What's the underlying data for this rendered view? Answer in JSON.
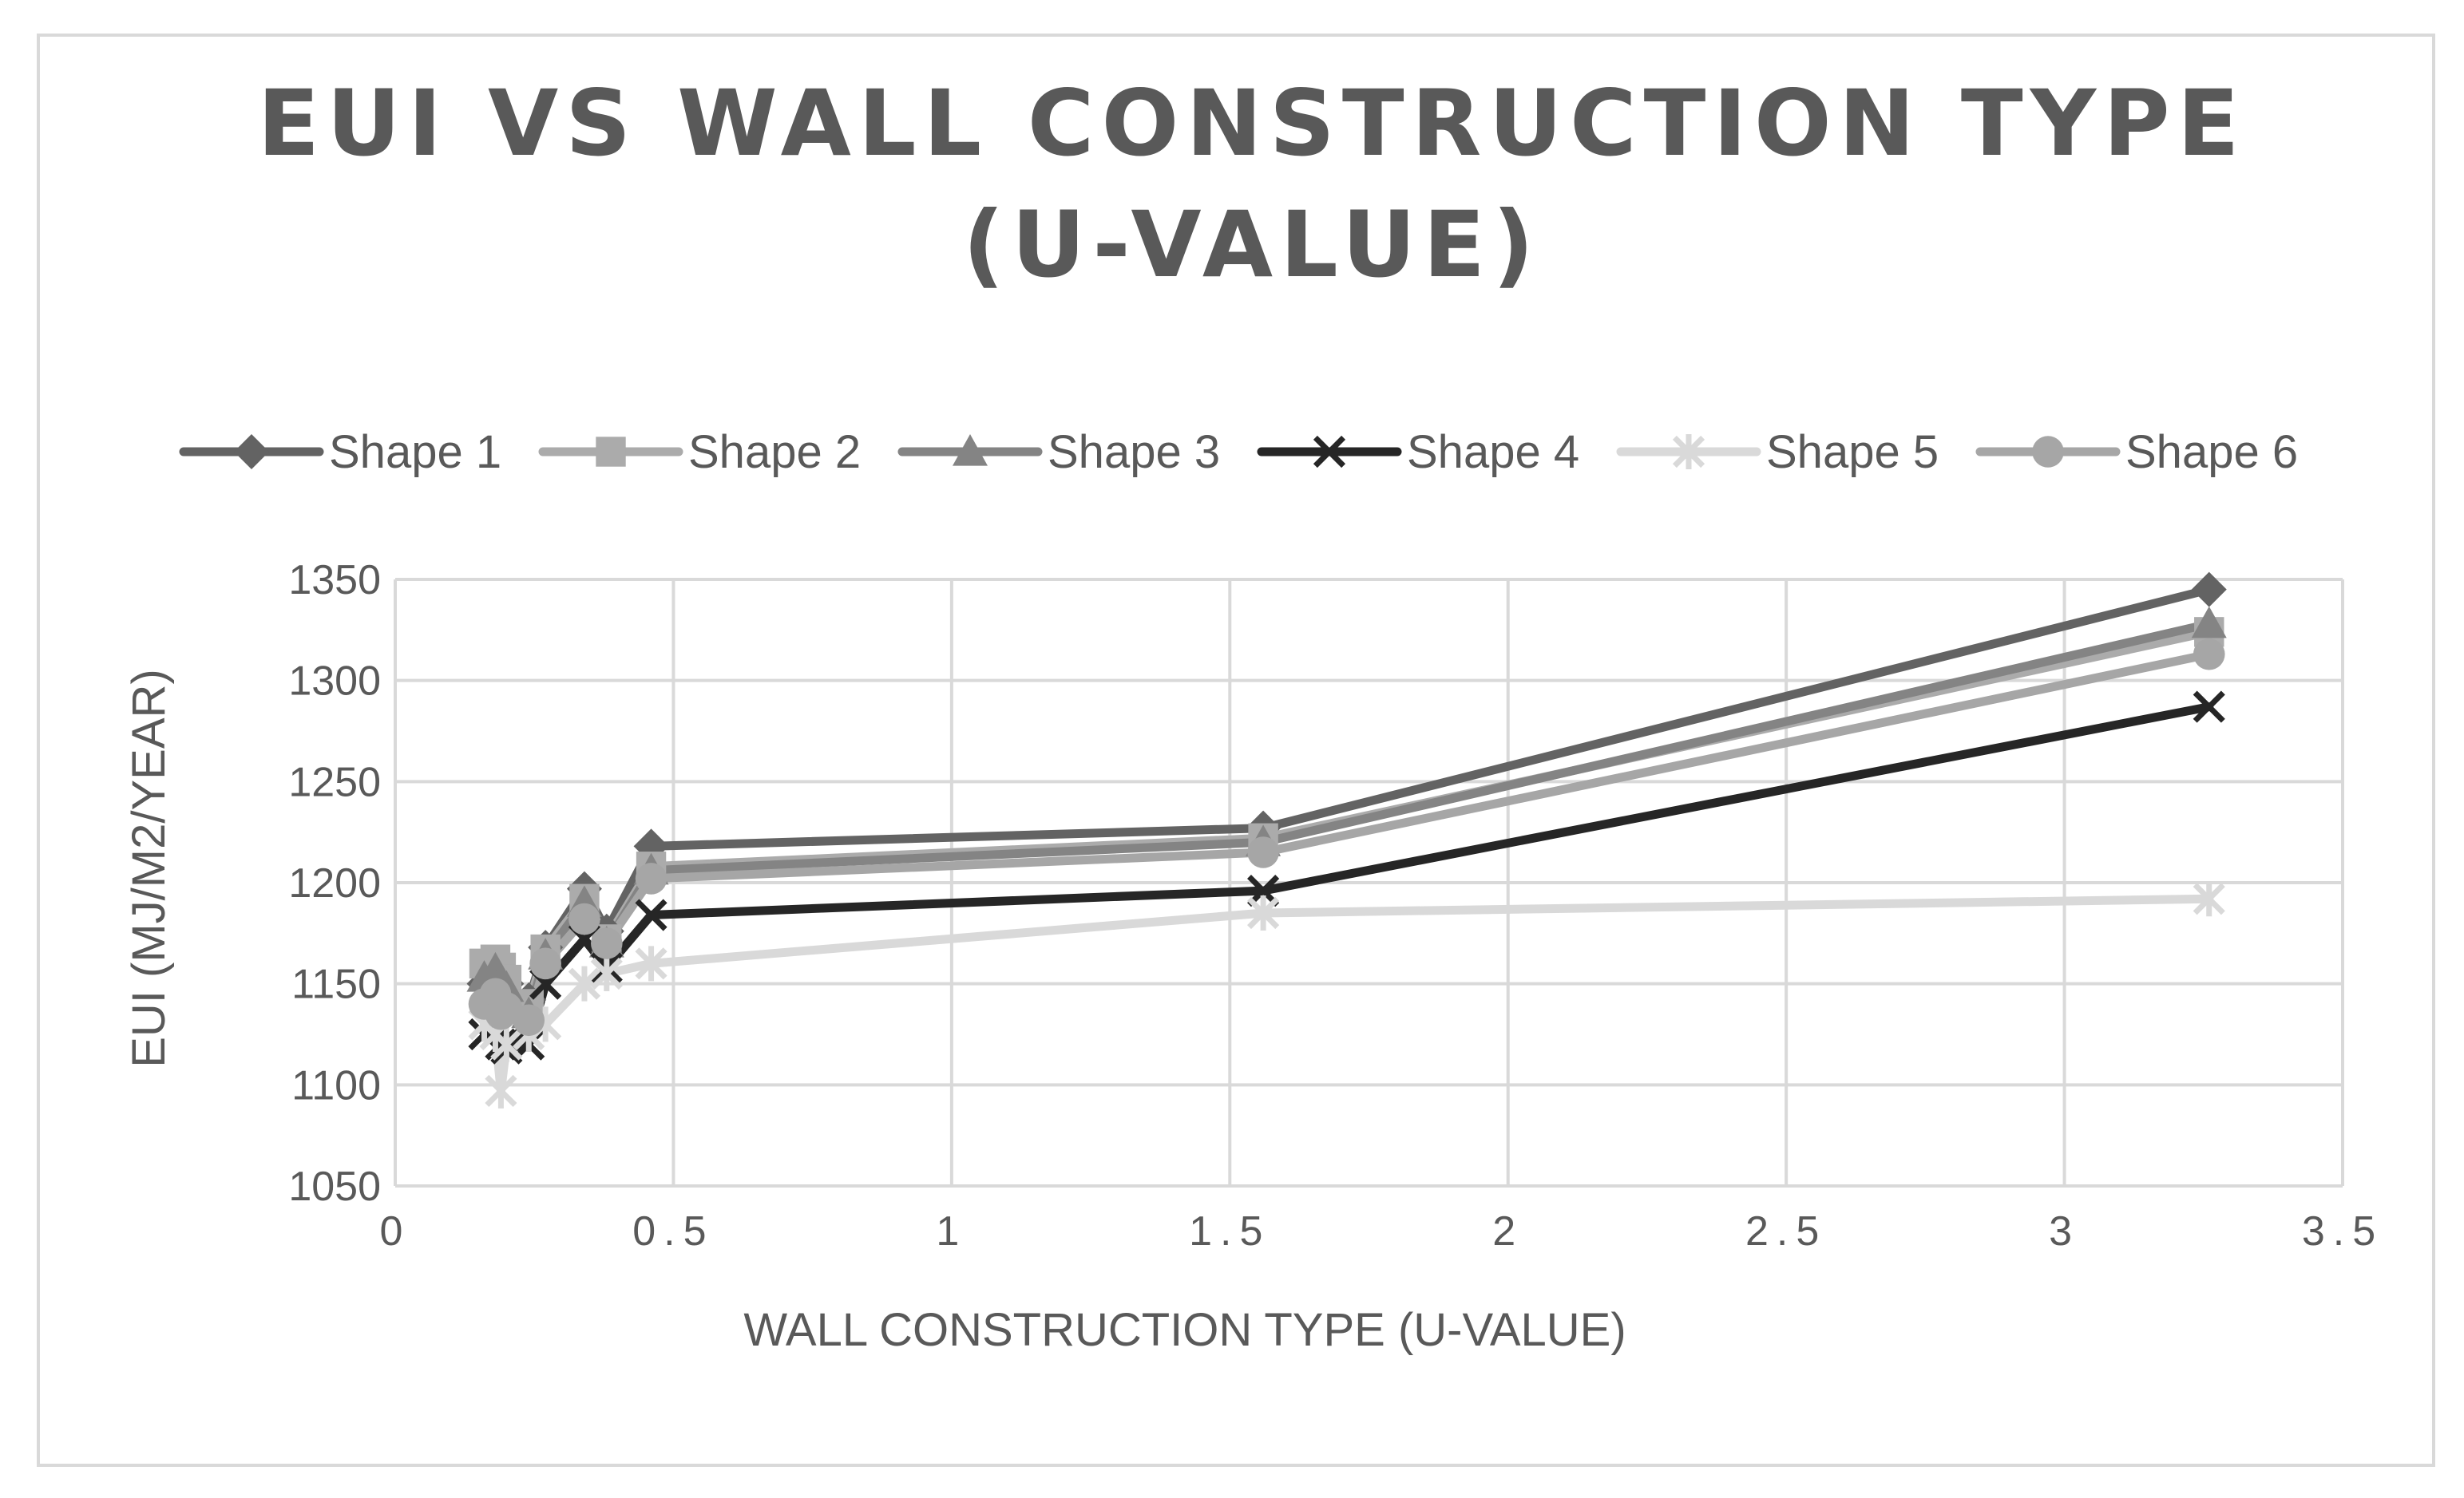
{
  "chart_data": {
    "type": "scatter",
    "title_lines": [
      "EUI VS WALL CONSTRUCTION TYPE",
      "(U-VALUE)"
    ],
    "xlabel": "WALL CONSTRUCTION TYPE (U-VALUE)",
    "ylabel": "EUI (MJ/M2/YEAR)",
    "xlim": [
      0,
      3.5
    ],
    "ylim": [
      1050,
      1350
    ],
    "x_ticks": [
      "0",
      "0.5",
      "1",
      "1.5",
      "2",
      "2.5",
      "3",
      "3.5"
    ],
    "y_ticks": [
      "1050",
      "1100",
      "1150",
      "1200",
      "1250",
      "1300",
      "1350"
    ],
    "grid": true,
    "legend_position": "top",
    "x": [
      0.16,
      0.18,
      0.19,
      0.2,
      0.24,
      0.27,
      0.34,
      0.38,
      0.46,
      1.56,
      3.26
    ],
    "series": [
      {
        "name": "Shape 1",
        "marker": "diamond",
        "color": "#636363",
        "values": [
          1150,
          1158,
          1155,
          1150,
          1142,
          1168,
          1197,
          1176,
          1218,
          1227,
          1345
        ]
      },
      {
        "name": "Shape 2",
        "marker": "square",
        "color": "#ababab",
        "values": [
          1160,
          1162,
          1158,
          1152,
          1140,
          1167,
          1192,
          1172,
          1208,
          1222,
          1324
        ]
      },
      {
        "name": "Shape 3",
        "marker": "triangle",
        "color": "#848484",
        "values": [
          1153,
          1157,
          1152,
          1148,
          1135,
          1164,
          1190,
          1170,
          1206,
          1220,
          1328
        ]
      },
      {
        "name": "Shape 4",
        "marker": "x",
        "color": "#262626",
        "values": [
          1125,
          1130,
          1120,
          1118,
          1120,
          1150,
          1172,
          1158,
          1184,
          1196,
          1287
        ]
      },
      {
        "name": "Shape 5",
        "marker": "star",
        "color": "#d9d9d9",
        "values": [
          1130,
          1125,
          1097,
          1120,
          1125,
          1130,
          1150,
          1155,
          1160,
          1185,
          1192
        ]
      },
      {
        "name": "Shape 6",
        "marker": "circle",
        "color": "#a6a6a6",
        "values": [
          1140,
          1145,
          1135,
          1138,
          1132,
          1160,
          1182,
          1170,
          1202,
          1215,
          1313
        ]
      }
    ]
  }
}
